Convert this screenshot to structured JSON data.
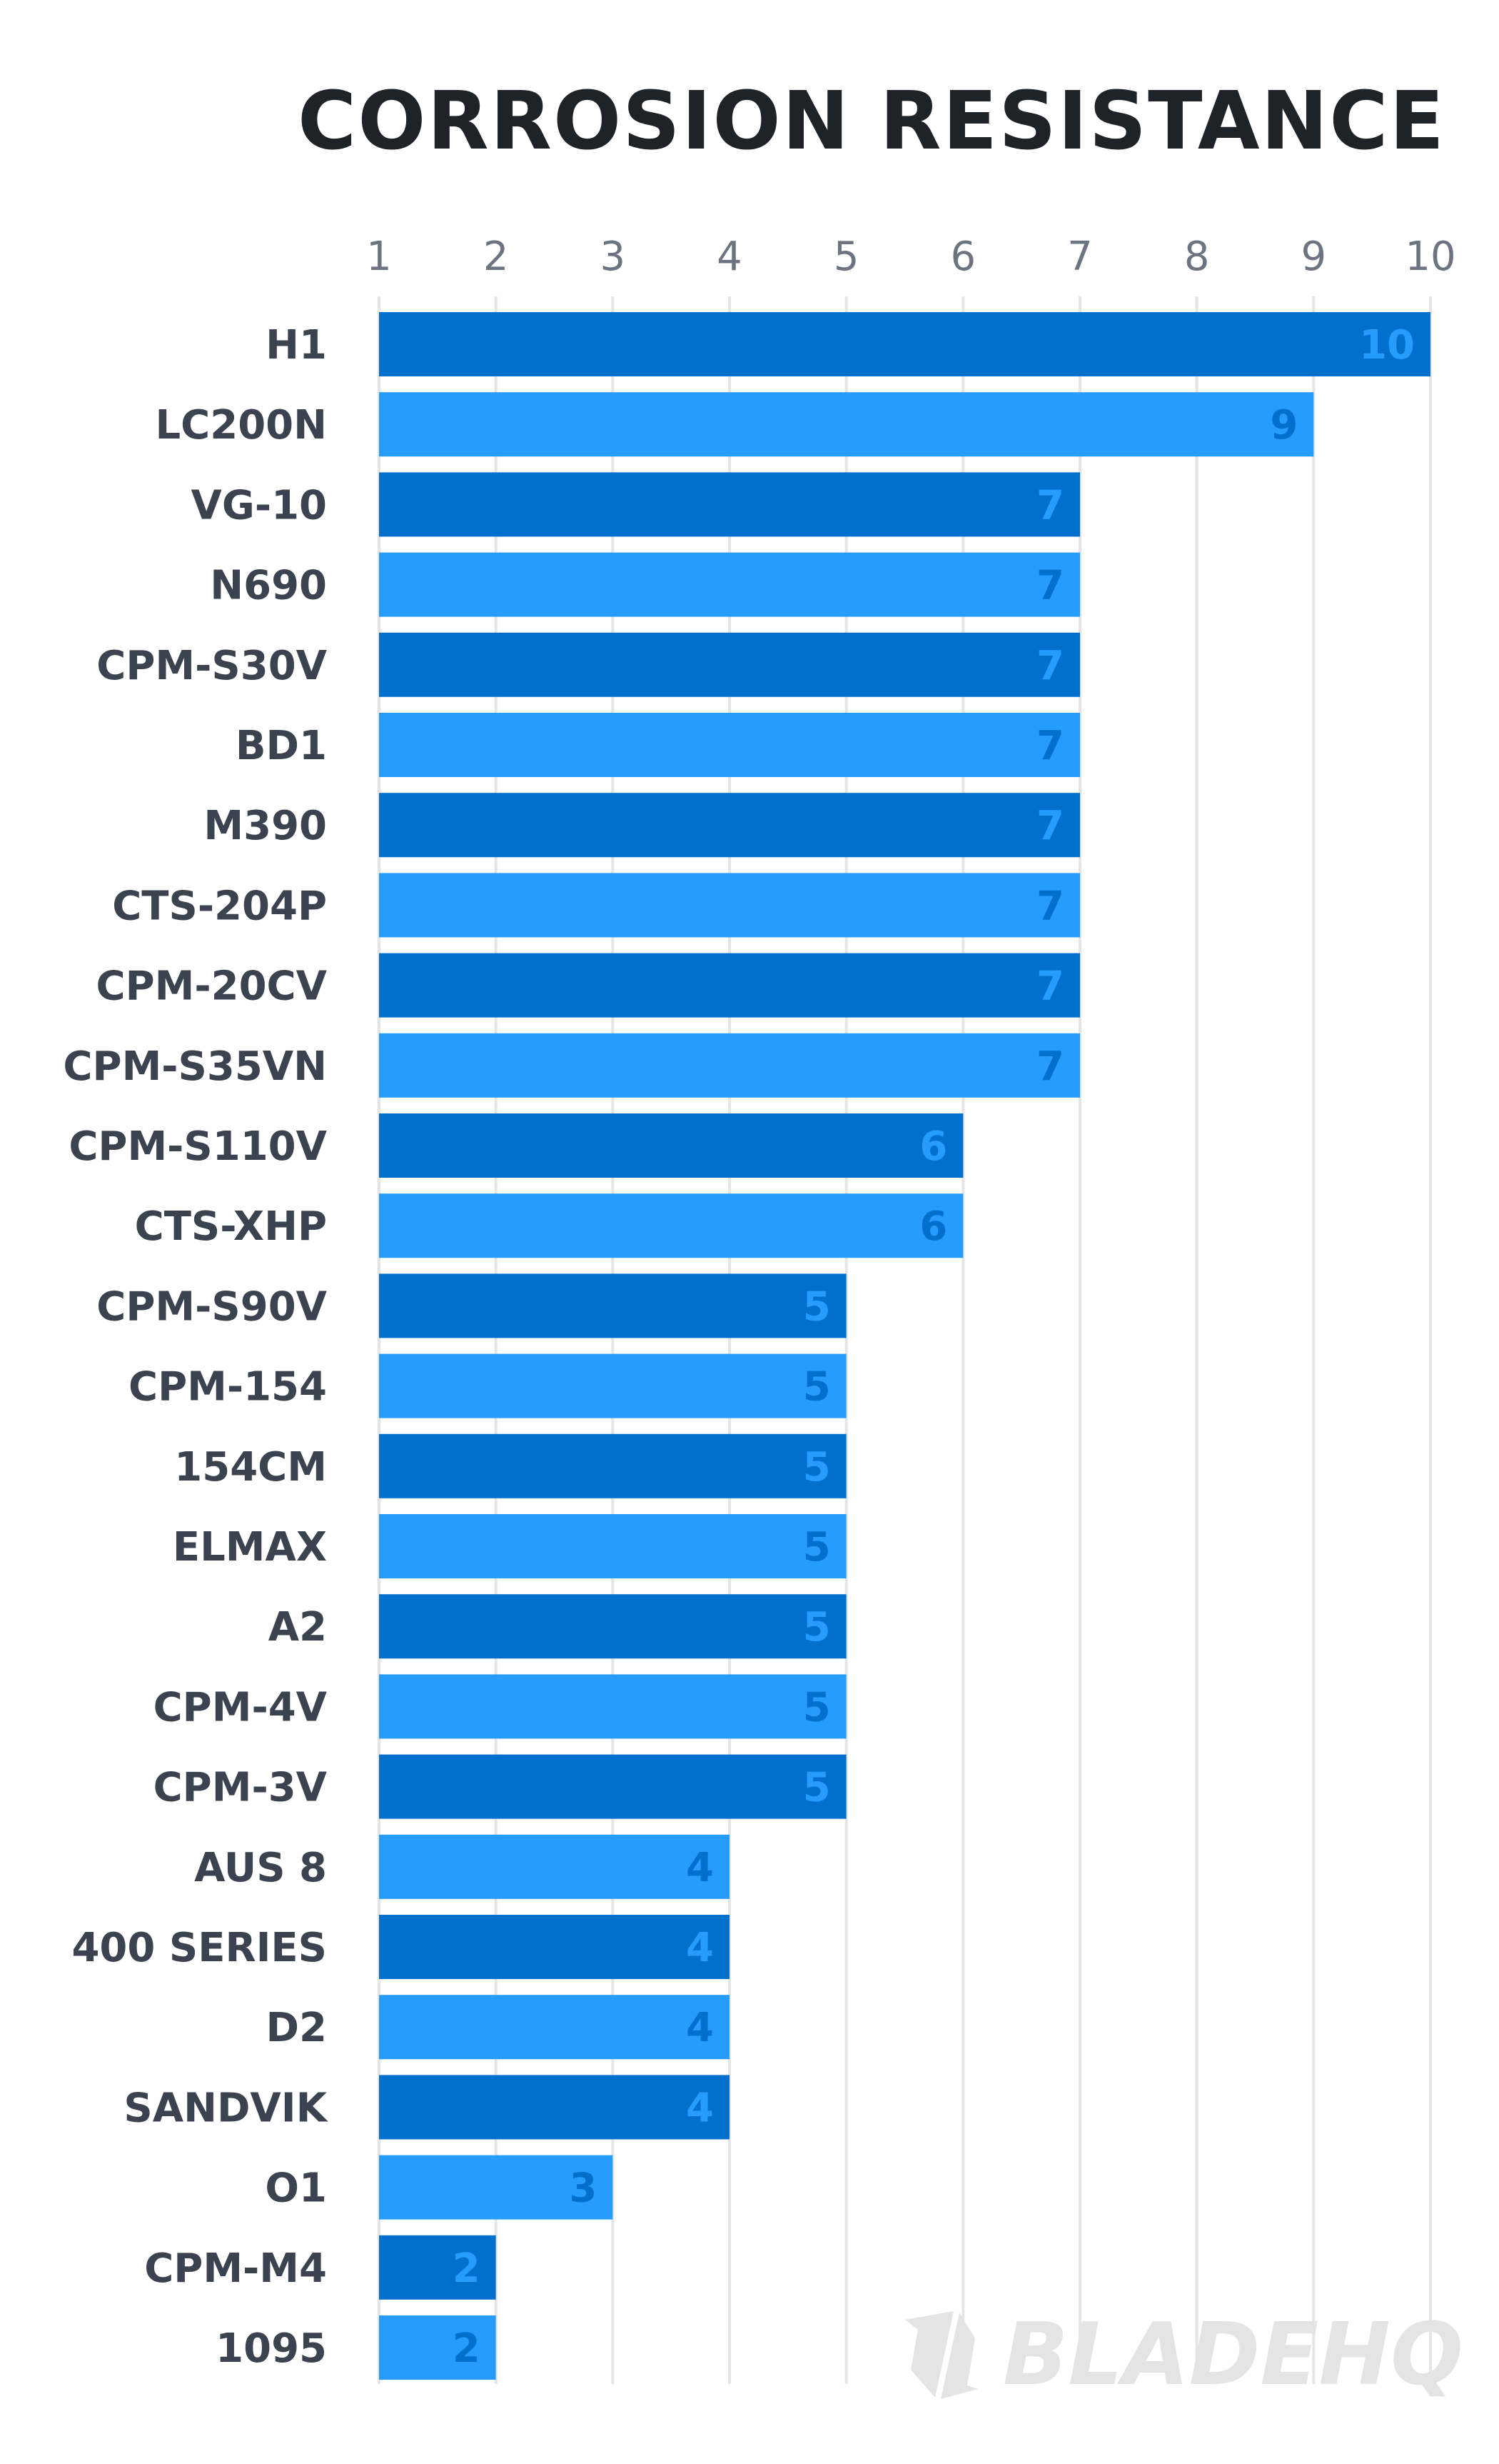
{
  "chart_data": {
    "type": "bar",
    "orientation": "horizontal",
    "title": "CORROSION RESISTANCE",
    "xlabel": "",
    "ylabel": "",
    "xlim": [
      1,
      10
    ],
    "x_ticks": [
      "1",
      "2",
      "3",
      "4",
      "5",
      "6",
      "7",
      "8",
      "9",
      "10"
    ],
    "grid": true,
    "categories": [
      "H1",
      "LC200N",
      "VG-10",
      "N690",
      "CPM-S30V",
      "BD1",
      "M390",
      "CTS-204P",
      "CPM-20CV",
      "CPM-S35VN",
      "CPM-S110V",
      "CTS-XHP",
      "CPM-S90V",
      "CPM-154",
      "154CM",
      "ELMAX",
      "A2",
      "CPM-4V",
      "CPM-3V",
      "AUS 8",
      "400 SERIES",
      "D2",
      "SANDVIK",
      "O1",
      "CPM-M4",
      "1095"
    ],
    "values": [
      10,
      9,
      7,
      7,
      7,
      7,
      7,
      7,
      7,
      7,
      6,
      6,
      5,
      5,
      5,
      5,
      5,
      5,
      5,
      4,
      4,
      4,
      4,
      3,
      2,
      2
    ],
    "colors": {
      "dark_bar": "#0070cc",
      "light_bar": "#279cff",
      "grid": "#e5e5e5",
      "title": "#1e2229",
      "category_text": "#3b4350",
      "tick_text": "#6b7480",
      "watermark": "#e4e4e4"
    }
  },
  "watermark": {
    "text": "BLADEHQ",
    "icon": "bladehq-logo-icon"
  }
}
